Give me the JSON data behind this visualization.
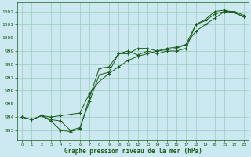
{
  "title": "Graphe pression niveau de la mer (hPa)",
  "background_color": "#cce8f0",
  "grid_color": "#99ccbb",
  "line_color": "#1a5c1a",
  "xlim": [
    -0.5,
    23.5
  ],
  "ylim": [
    992.3,
    1002.7
  ],
  "xticks": [
    0,
    1,
    2,
    3,
    4,
    5,
    6,
    7,
    8,
    9,
    10,
    11,
    12,
    13,
    14,
    15,
    16,
    17,
    18,
    19,
    20,
    21,
    22,
    23
  ],
  "yticks": [
    993,
    994,
    995,
    996,
    997,
    998,
    999,
    1000,
    1001,
    1002
  ],
  "series1_x": [
    0,
    1,
    2,
    3,
    4,
    5,
    6,
    7,
    8,
    9,
    10,
    11,
    12,
    13,
    14,
    15,
    16,
    17,
    18,
    19,
    20,
    21,
    22,
    23
  ],
  "series1_y": [
    994.0,
    993.8,
    994.1,
    993.8,
    993.7,
    993.0,
    993.2,
    995.2,
    997.2,
    997.4,
    998.8,
    998.8,
    999.2,
    999.2,
    999.0,
    999.2,
    999.3,
    999.5,
    1001.0,
    1001.4,
    1002.0,
    1002.1,
    1001.9,
    1001.6
  ],
  "series2_x": [
    0,
    1,
    2,
    3,
    4,
    5,
    6,
    7,
    8,
    9,
    10,
    11,
    12,
    13,
    14,
    15,
    16,
    17,
    18,
    19,
    20,
    21,
    22,
    23
  ],
  "series2_y": [
    994.0,
    993.8,
    994.1,
    994.0,
    994.1,
    994.2,
    994.3,
    995.8,
    996.7,
    997.3,
    997.8,
    998.3,
    998.6,
    998.8,
    999.0,
    999.1,
    999.2,
    999.5,
    1000.5,
    1001.0,
    1001.5,
    1002.0,
    1001.9,
    1001.6
  ],
  "series3_x": [
    0,
    1,
    2,
    3,
    4,
    5,
    6,
    7,
    8,
    9,
    10,
    11,
    12,
    13,
    14,
    15,
    16,
    17,
    18,
    19,
    20,
    21,
    22,
    23
  ],
  "series3_y": [
    994.0,
    993.8,
    994.1,
    993.7,
    993.0,
    992.9,
    993.1,
    995.5,
    997.7,
    997.8,
    998.8,
    999.0,
    998.7,
    999.0,
    998.8,
    999.0,
    999.0,
    999.2,
    1001.0,
    1001.3,
    1001.8,
    1002.0,
    1002.0,
    1001.7
  ]
}
